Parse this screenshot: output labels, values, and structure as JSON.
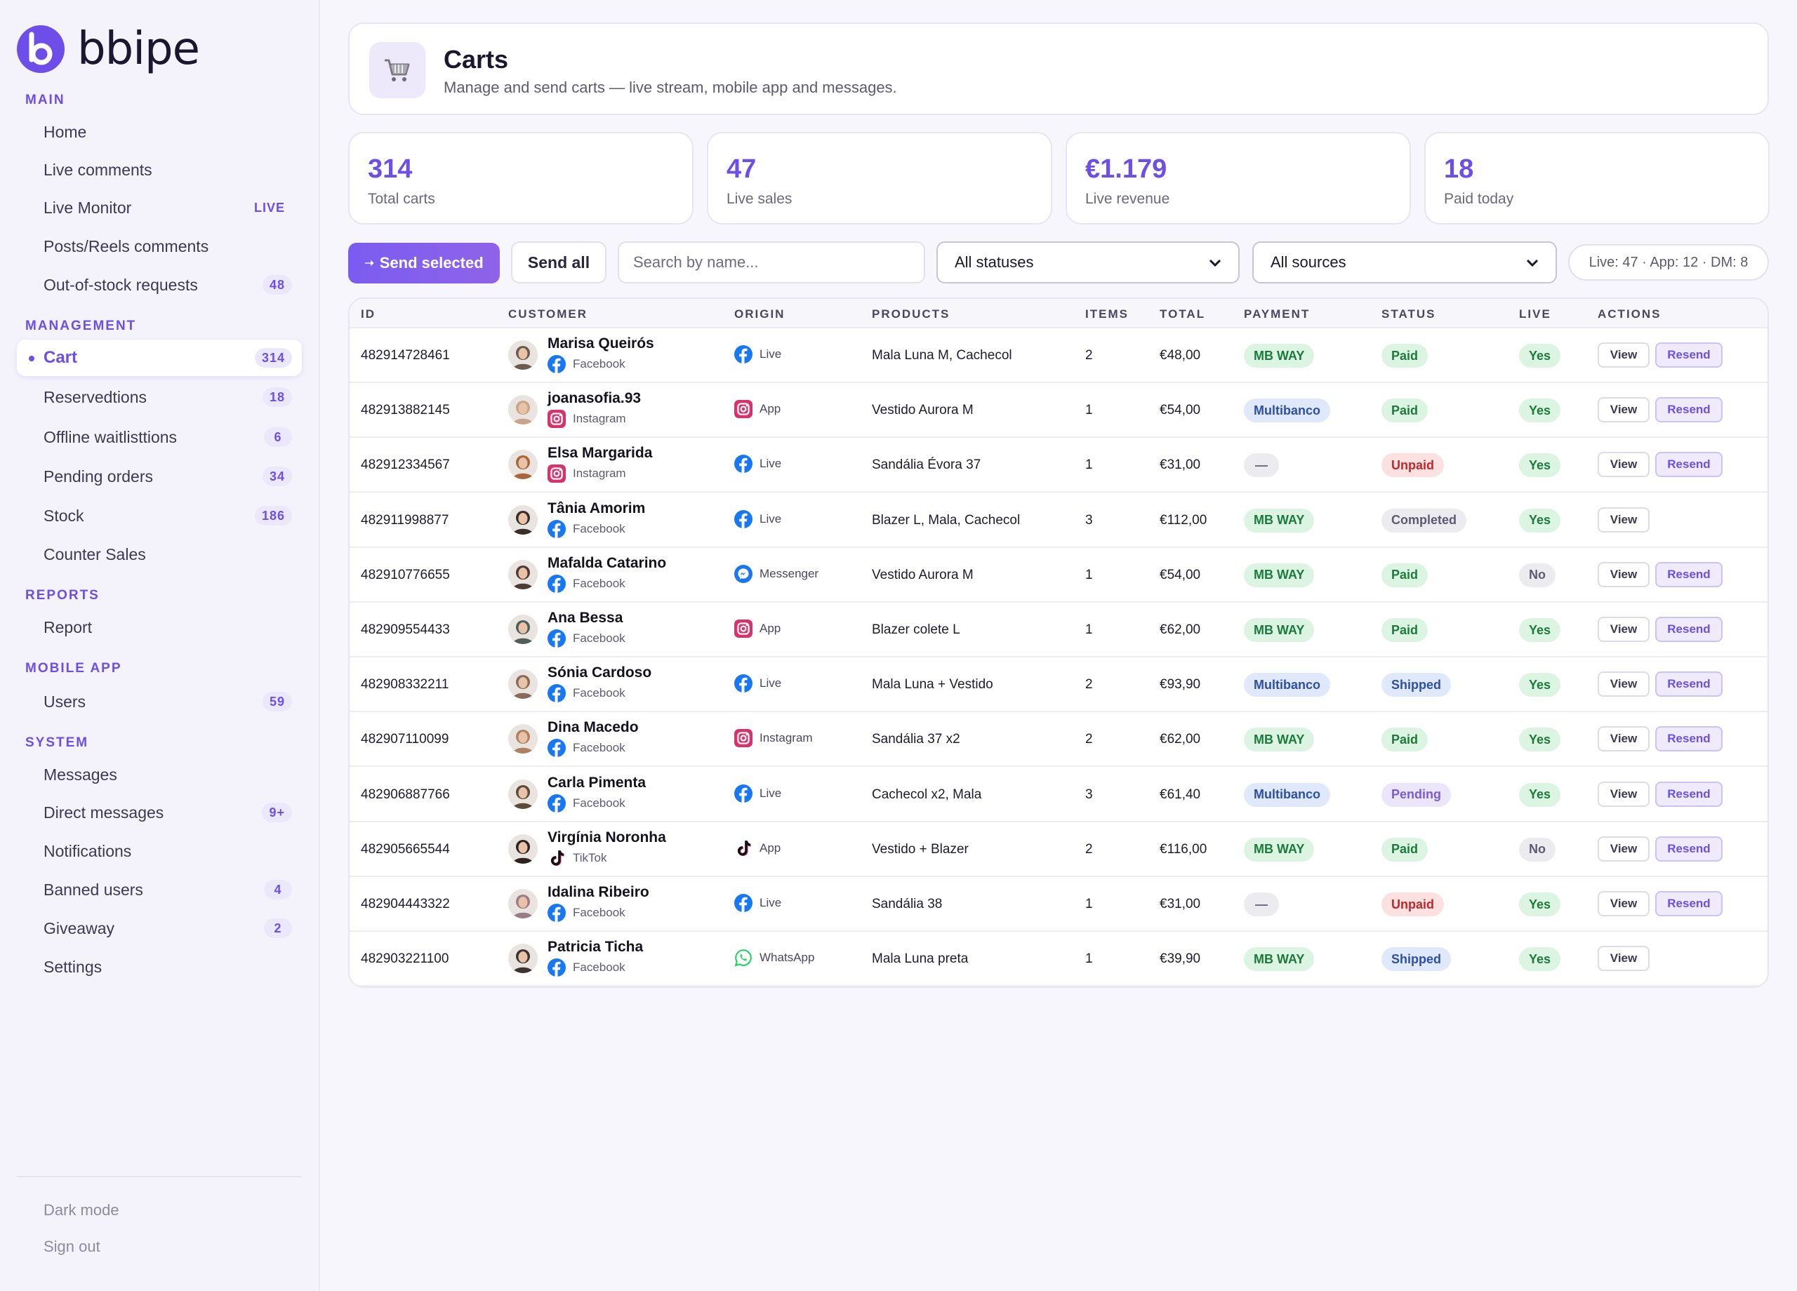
{
  "brand": {
    "name": "bbipe"
  },
  "sidebar": {
    "sections": [
      {
        "label": "MAIN",
        "top": 0
      },
      {
        "label": "MANAGEMENT"
      },
      {
        "label": "REPORTS"
      },
      {
        "label": "MOBILE APP"
      },
      {
        "label": "SYSTEM"
      }
    ],
    "items": [
      {
        "label": "Home",
        "badge": ""
      },
      {
        "label": "Live comments",
        "badge": ""
      },
      {
        "label": "Live Monitor",
        "badge": "LIVE"
      },
      {
        "label": "Posts/Reels comments",
        "badge": ""
      },
      {
        "label": "Out-of-stock requests",
        "badge": "48"
      },
      {
        "label": "Cart",
        "badge": "314"
      },
      {
        "label": "Reservedtions",
        "badge": "18"
      },
      {
        "label": "Offline waitlisttions",
        "badge": "6"
      },
      {
        "label": "Pending orders",
        "badge": "34"
      },
      {
        "label": "Stock",
        "badge": "186"
      },
      {
        "label": "Counter Sales",
        "badge": ""
      },
      {
        "label": "Report",
        "badge": ""
      },
      {
        "label": "Users",
        "badge": "59"
      },
      {
        "label": "Messages",
        "badge": ""
      },
      {
        "label": "Direct messages",
        "badge": "9+"
      },
      {
        "label": "Notifications",
        "badge": ""
      },
      {
        "label": "Banned users",
        "badge": "4"
      },
      {
        "label": "Giveaway",
        "badge": "2"
      },
      {
        "label": "Settings",
        "badge": ""
      }
    ],
    "footer": {
      "dark_mode": "Dark mode",
      "sign_out": "Sign out"
    }
  },
  "header": {
    "icon": "cart-icon",
    "title": "Carts",
    "subtitle": "Manage and send carts — live stream, mobile app and messages."
  },
  "stats": [
    {
      "value": "314",
      "label": "Total carts"
    },
    {
      "value": "47",
      "label": "Live sales"
    },
    {
      "value": "€1.179",
      "label": "Live revenue"
    },
    {
      "value": "18",
      "label": "Paid today"
    }
  ],
  "toolbar": {
    "send_selected": "Send selected",
    "send_all": "Send all",
    "search_placeholder": "Search by name...",
    "status_filter": "All statuses",
    "source_filter": "All sources",
    "counts": "Live: 47 · App: 12 · DM: 8"
  },
  "table": {
    "headers": [
      "ID",
      "CUSTOMER",
      "ORIGIN",
      "PRODUCTS",
      "ITEMS",
      "TOTAL",
      "PAYMENT",
      "STATUS",
      "LIVE",
      "ACTIONS"
    ],
    "view_label": "View",
    "resend_label": "Resend",
    "rows": [
      {
        "id": "482914728461",
        "name": "Marisa Queirós",
        "source": "Facebook",
        "origin": "Live",
        "origin_icon": "facebook",
        "products": "Mala Luna M, Cachecol",
        "items": "2",
        "total": "€48,00",
        "payment": "MB WAY",
        "status": "Paid",
        "live": "Yes",
        "resend": true,
        "avatar_color": "#6b5a4e"
      },
      {
        "id": "482913882145",
        "name": "joanasofia.93",
        "source": "Instagram",
        "origin": "App",
        "origin_icon": "instagram",
        "products": "Vestido Aurora M",
        "items": "1",
        "total": "€54,00",
        "payment": "Multibanco",
        "status": "Paid",
        "live": "Yes",
        "resend": true,
        "avatar_color": "#c9a48a"
      },
      {
        "id": "482912334567",
        "name": "Elsa Margarida",
        "source": "Instagram",
        "origin": "Live",
        "origin_icon": "facebook",
        "products": "Sandália Évora 37",
        "items": "1",
        "total": "€31,00",
        "payment": "—",
        "status": "Unpaid",
        "live": "Yes",
        "resend": true,
        "avatar_color": "#a8653a"
      },
      {
        "id": "482911998877",
        "name": "Tânia Amorim",
        "source": "Facebook",
        "origin": "Live",
        "origin_icon": "facebook",
        "products": "Blazer L, Mala, Cachecol",
        "items": "3",
        "total": "€112,00",
        "payment": "MB WAY",
        "status": "Completed",
        "live": "Yes",
        "resend": false,
        "avatar_color": "#3a2e2a"
      },
      {
        "id": "482910776655",
        "name": "Mafalda Catarino",
        "source": "Facebook",
        "origin": "Messenger",
        "origin_icon": "messenger",
        "products": "Vestido Aurora M",
        "items": "1",
        "total": "€54,00",
        "payment": "MB WAY",
        "status": "Paid",
        "live": "No",
        "resend": true,
        "avatar_color": "#4d3a33"
      },
      {
        "id": "482909554433",
        "name": "Ana Bessa",
        "source": "Facebook",
        "origin": "App",
        "origin_icon": "instagram",
        "products": "Blazer colete L",
        "items": "1",
        "total": "€62,00",
        "payment": "MB WAY",
        "status": "Paid",
        "live": "Yes",
        "resend": true,
        "avatar_color": "#4e5e58"
      },
      {
        "id": "482908332211",
        "name": "Sónia Cardoso",
        "source": "Facebook",
        "origin": "Live",
        "origin_icon": "facebook",
        "products": "Mala Luna + Vestido",
        "items": "2",
        "total": "€93,90",
        "payment": "Multibanco",
        "status": "Shipped",
        "live": "Yes",
        "resend": true,
        "avatar_color": "#8a6a58"
      },
      {
        "id": "482907110099",
        "name": "Dina Macedo",
        "source": "Facebook",
        "origin": "Instagram",
        "origin_icon": "instagram",
        "products": "Sandália 37 x2",
        "items": "2",
        "total": "€62,00",
        "payment": "MB WAY",
        "status": "Paid",
        "live": "Yes",
        "resend": true,
        "avatar_color": "#b08060"
      },
      {
        "id": "482906887766",
        "name": "Carla Pimenta",
        "source": "Facebook",
        "origin": "Live",
        "origin_icon": "facebook",
        "products": "Cachecol x2, Mala",
        "items": "3",
        "total": "€61,40",
        "payment": "Multibanco",
        "status": "Pending",
        "live": "Yes",
        "resend": true,
        "avatar_color": "#5a4a38"
      },
      {
        "id": "482905665544",
        "name": "Virgínia Noronha",
        "source": "TikTok",
        "origin": "App",
        "origin_icon": "tiktok",
        "products": "Vestido + Blazer",
        "items": "2",
        "total": "€116,00",
        "payment": "MB WAY",
        "status": "Paid",
        "live": "No",
        "resend": true,
        "avatar_color": "#2e2220"
      },
      {
        "id": "482904443322",
        "name": "Idalina Ribeiro",
        "source": "Facebook",
        "origin": "Live",
        "origin_icon": "facebook",
        "products": "Sandália 38",
        "items": "1",
        "total": "€31,00",
        "payment": "—",
        "status": "Unpaid",
        "live": "Yes",
        "resend": true,
        "avatar_color": "#9a7c86"
      },
      {
        "id": "482903221100",
        "name": "Patricia Ticha",
        "source": "Facebook",
        "origin": "WhatsApp",
        "origin_icon": "whatsapp",
        "products": "Mala Luna preta",
        "items": "1",
        "total": "€39,90",
        "payment": "MB WAY",
        "status": "Shipped",
        "live": "Yes",
        "resend": false,
        "avatar_color": "#3c3230"
      }
    ]
  },
  "colors": {
    "accent": "#6d4ee8",
    "facebook": "#1877f2",
    "whatsapp": "#25d366"
  }
}
